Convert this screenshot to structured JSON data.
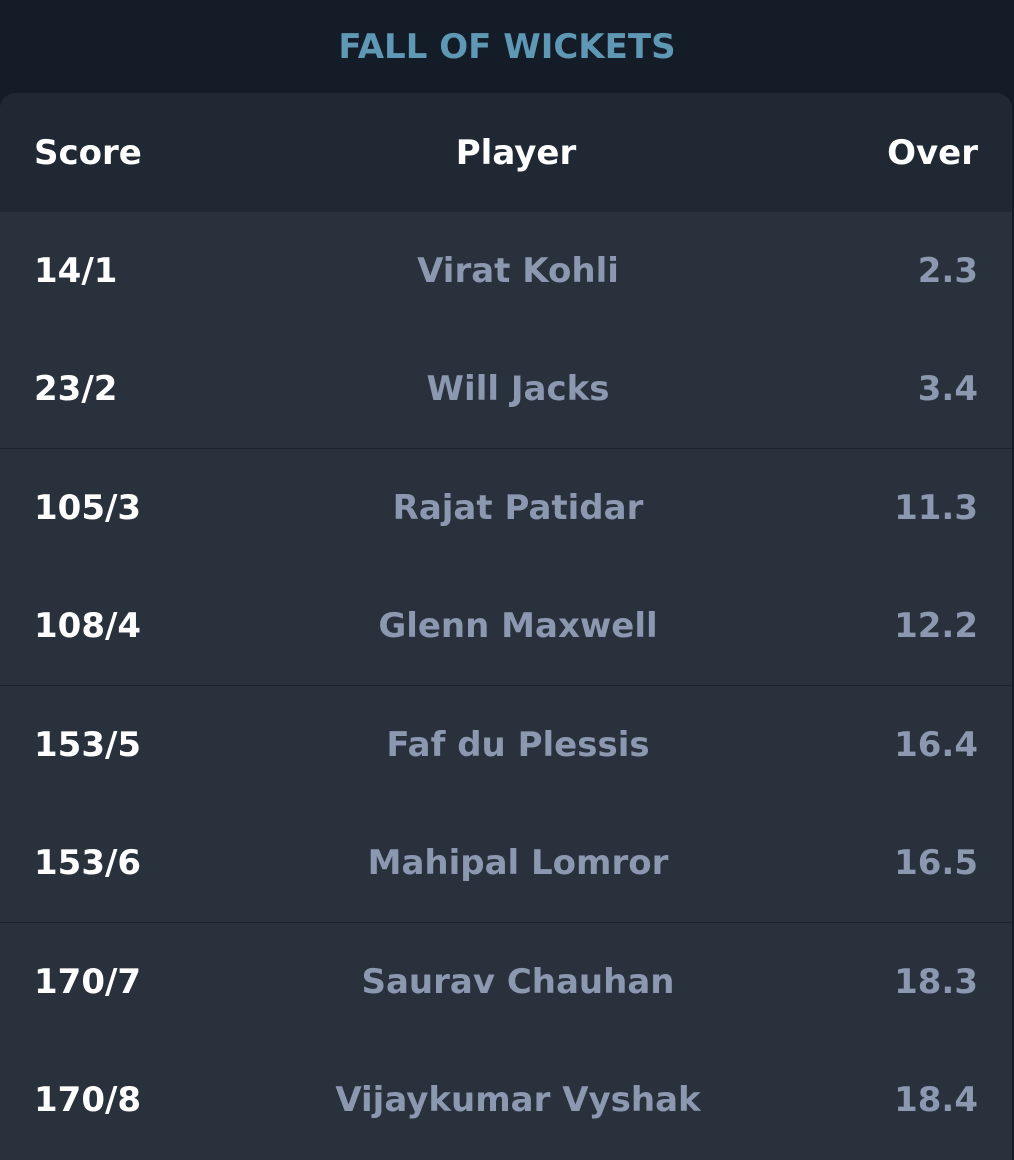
{
  "title": "FALL OF WICKETS",
  "headers": {
    "score": "Score",
    "player": "Player",
    "over": "Over"
  },
  "rows": [
    {
      "score": "14/1",
      "player": "Virat Kohli",
      "over": "2.3"
    },
    {
      "score": "23/2",
      "player": "Will Jacks",
      "over": "3.4"
    },
    {
      "score": "105/3",
      "player": "Rajat Patidar",
      "over": "11.3"
    },
    {
      "score": "108/4",
      "player": "Glenn Maxwell",
      "over": "12.2"
    },
    {
      "score": "153/5",
      "player": "Faf du Plessis",
      "over": "16.4"
    },
    {
      "score": "153/6",
      "player": "Mahipal Lomror",
      "over": "16.5"
    },
    {
      "score": "170/7",
      "player": "Saurav Chauhan",
      "over": "18.3"
    },
    {
      "score": "170/8",
      "player": "Vijaykumar Vyshak",
      "over": "18.4"
    }
  ],
  "colors": {
    "background": "#141c28",
    "title": "#5f98b4",
    "header_bg": "#202833",
    "row_bg": "#29313d",
    "score_text": "#ffffff",
    "muted_text": "#8b98af"
  }
}
